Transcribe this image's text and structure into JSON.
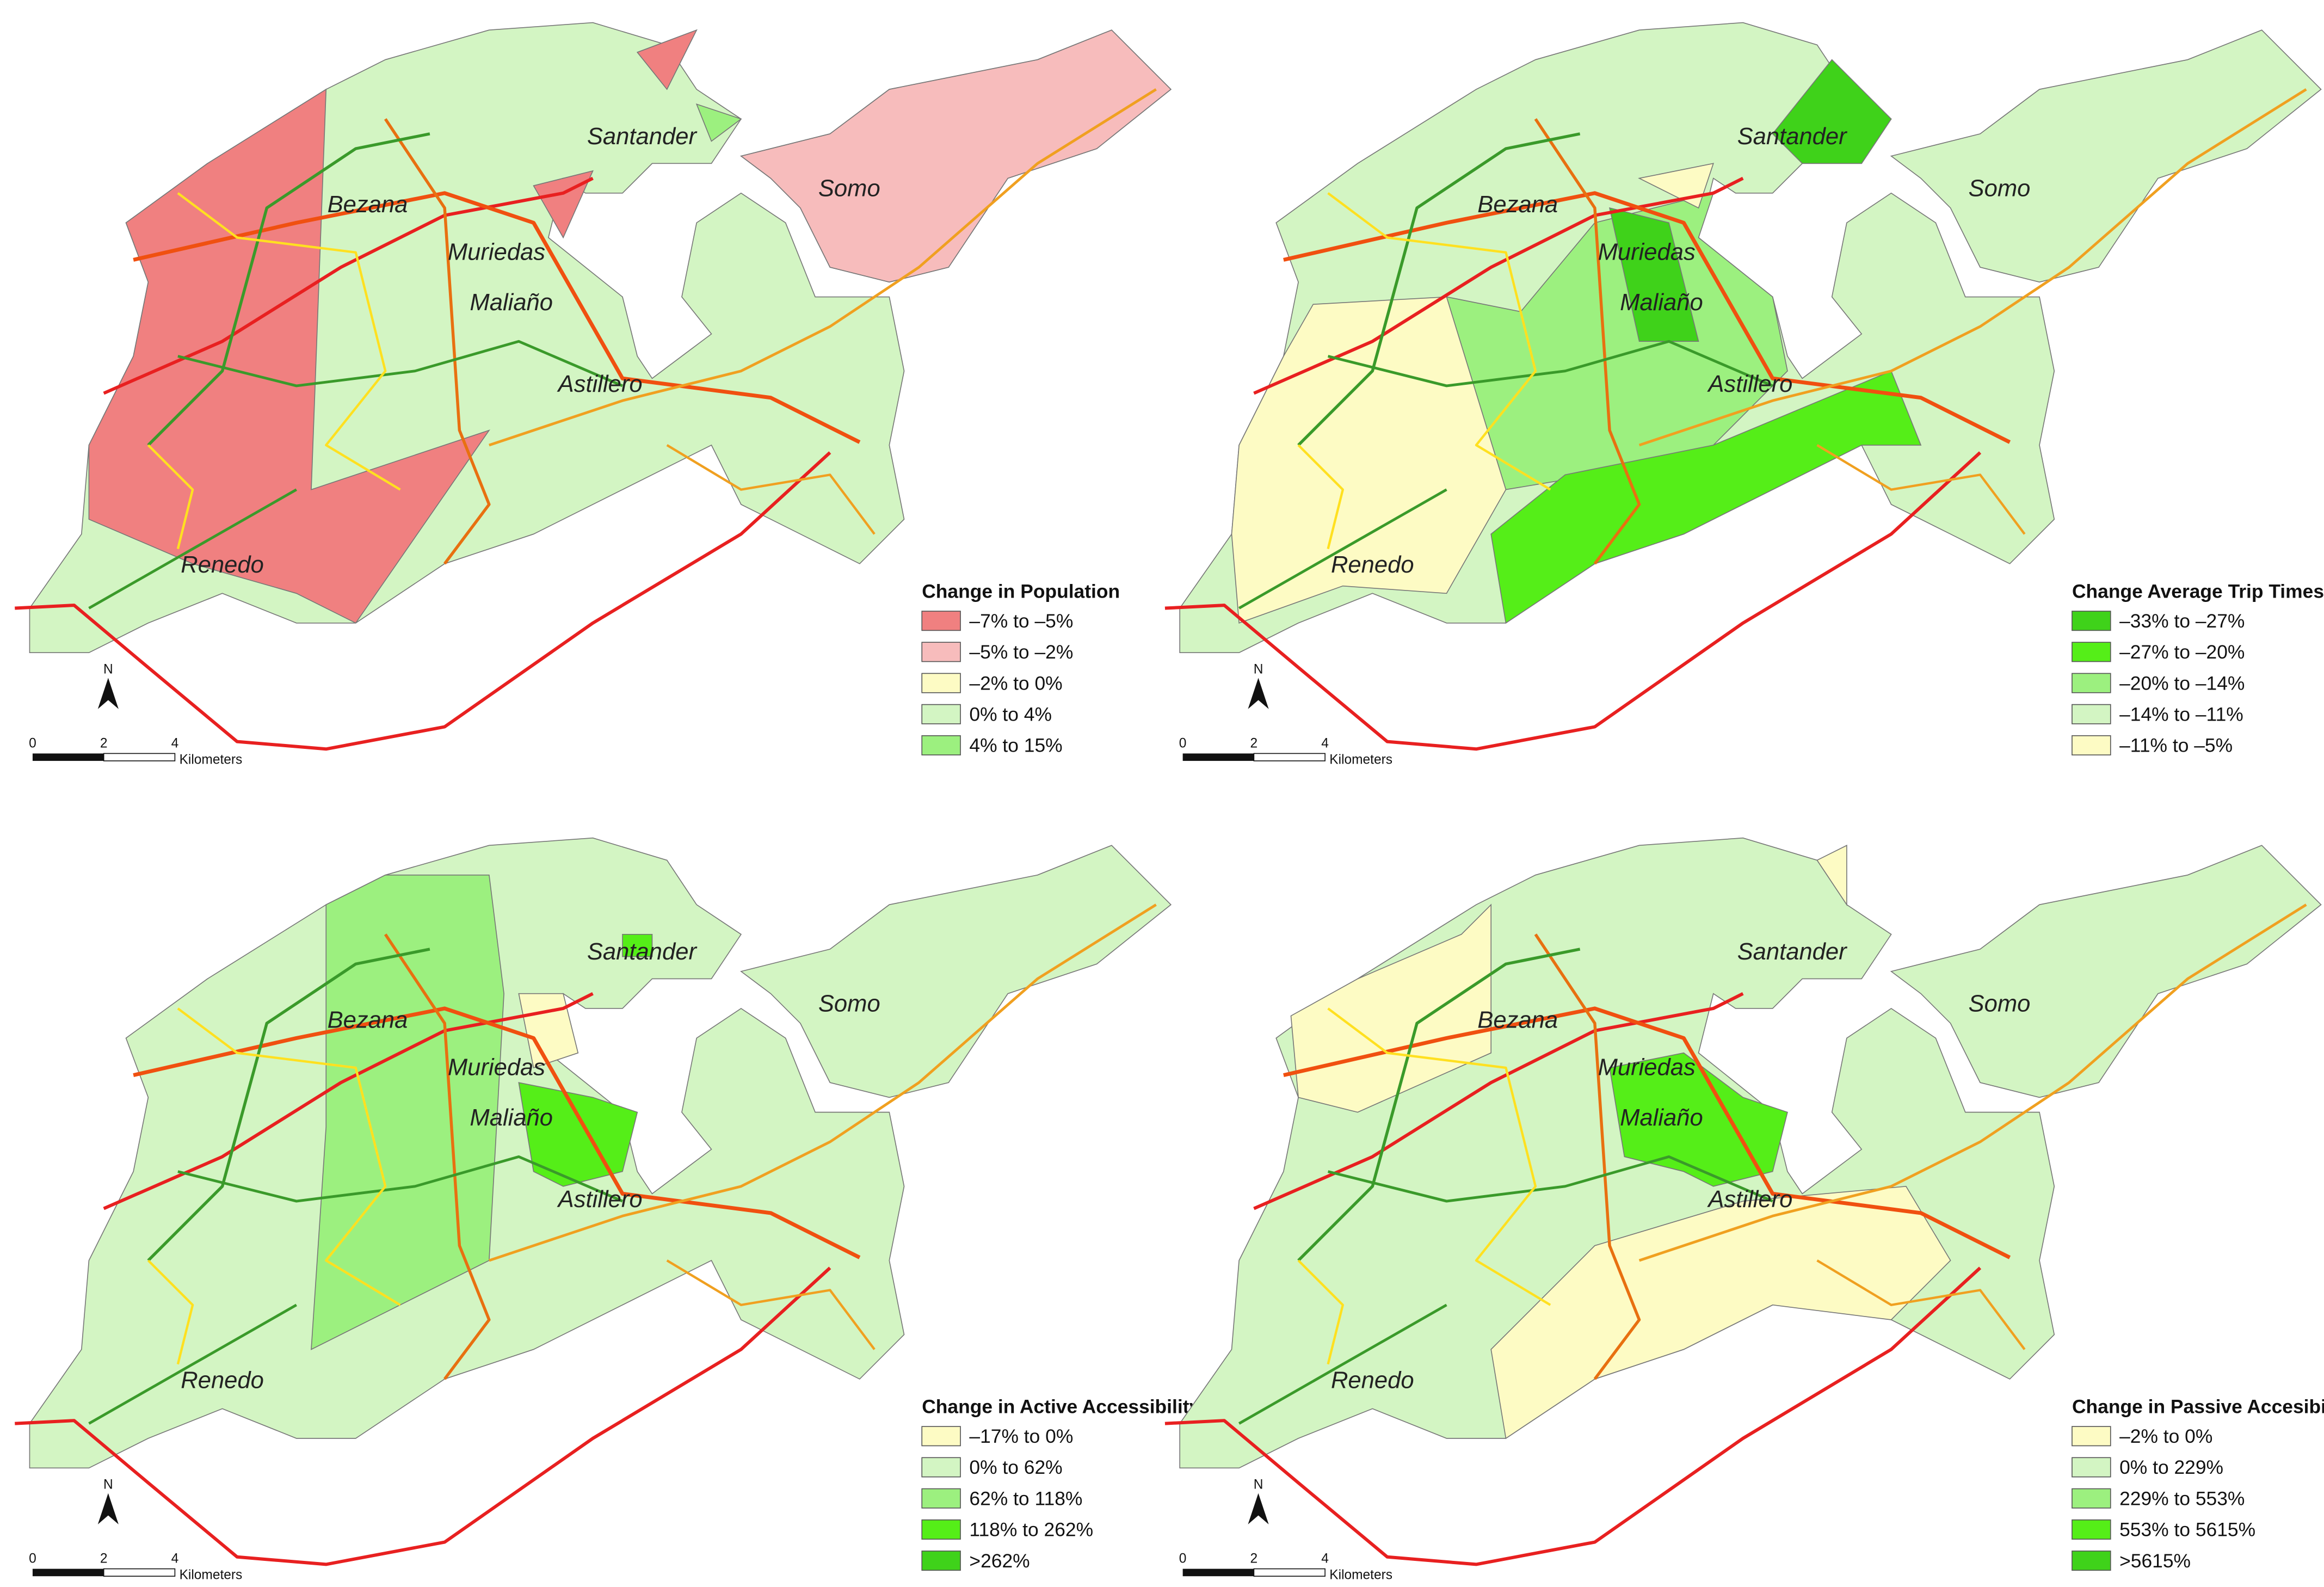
{
  "places": [
    "Santander",
    "Somo",
    "Bezana",
    "Muriedas",
    "Maliaño",
    "Astillero",
    "Renedo"
  ],
  "north": "N",
  "scale": {
    "ticks": [
      "0",
      "2",
      "4"
    ],
    "unit": "Kilometers"
  },
  "panels": [
    {
      "legend_title": "Change in Population",
      "legend": [
        {
          "label": "–7% to –5%",
          "color": "#f08080"
        },
        {
          "label": "–5% to –2%",
          "color": "#f7bcbc"
        },
        {
          "label": "–2% to 0%",
          "color": "#fdfbc4"
        },
        {
          "label": "0% to 4%",
          "color": "#d3f5c3"
        },
        {
          "label": "4% to 15%",
          "color": "#9cf07f"
        }
      ]
    },
    {
      "legend_title": "Change Average Trip Times",
      "legend": [
        {
          "label": "–33% to –27%",
          "color": "#3fd21a"
        },
        {
          "label": "–27% to –20%",
          "color": "#55ee18"
        },
        {
          "label": "–20% to –14%",
          "color": "#9cf07f"
        },
        {
          "label": "–14% to –11%",
          "color": "#d3f5c3"
        },
        {
          "label": "–11% to –5%",
          "color": "#fdfbc4"
        }
      ]
    },
    {
      "legend_title": "Change in Active Accessibility",
      "legend": [
        {
          "label": "–17% to 0%",
          "color": "#fdfbc4"
        },
        {
          "label": "0% to 62%",
          "color": "#d3f5c3"
        },
        {
          "label": "62% to 118%",
          "color": "#9cf07f"
        },
        {
          "label": "118% to 262%",
          "color": "#55ee18"
        },
        {
          "label": ">262%",
          "color": "#3fd21a"
        }
      ]
    },
    {
      "legend_title": "Change in Passive Accesibility",
      "legend": [
        {
          "label": "–2% to 0%",
          "color": "#fdfbc4"
        },
        {
          "label": "0% to 229%",
          "color": "#d3f5c3"
        },
        {
          "label": "229% to 553%",
          "color": "#9cf07f"
        },
        {
          "label": "553% to 5615%",
          "color": "#55ee18"
        },
        {
          "label": ">5615%",
          "color": "#3fd21a"
        }
      ]
    }
  ]
}
